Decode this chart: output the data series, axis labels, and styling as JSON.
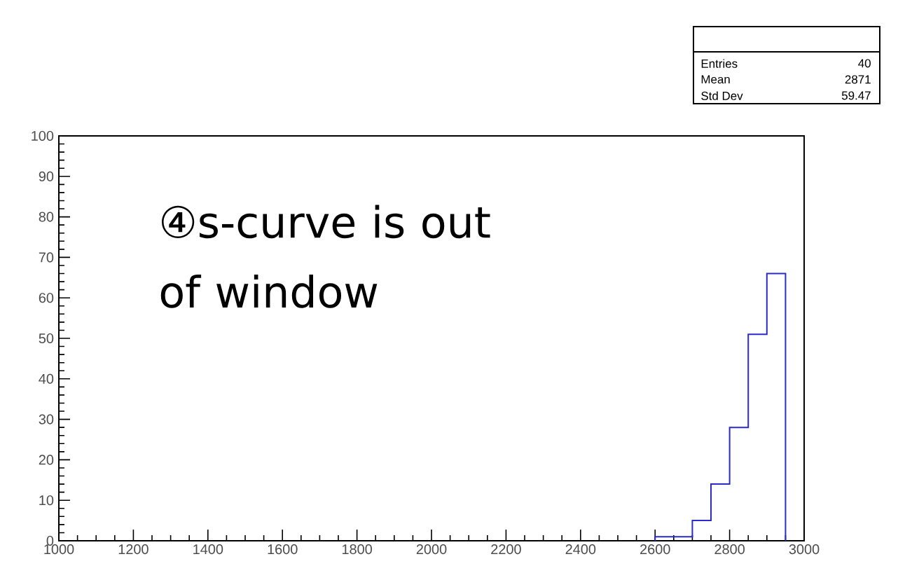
{
  "chart_data": {
    "type": "histogram",
    "bins": [
      2600,
      2650,
      2700,
      2750,
      2800,
      2850,
      2900,
      2950
    ],
    "values": [
      1,
      1,
      5,
      14,
      28,
      51,
      66
    ],
    "color": "#2b2bcc",
    "xlim": [
      1000,
      3000
    ],
    "xticks": [
      1000,
      1200,
      1400,
      1600,
      1800,
      2000,
      2200,
      2400,
      2600,
      2800,
      3000
    ],
    "ylim": [
      0,
      100
    ],
    "yticks": [
      0,
      10,
      20,
      30,
      40,
      50,
      60,
      70,
      80,
      90,
      100
    ],
    "grid": false,
    "annotations": [
      "④s-curve is out of window",
      "Entries",
      "40",
      "Mean",
      "2871",
      "Std Dev",
      "59.47"
    ]
  }
}
